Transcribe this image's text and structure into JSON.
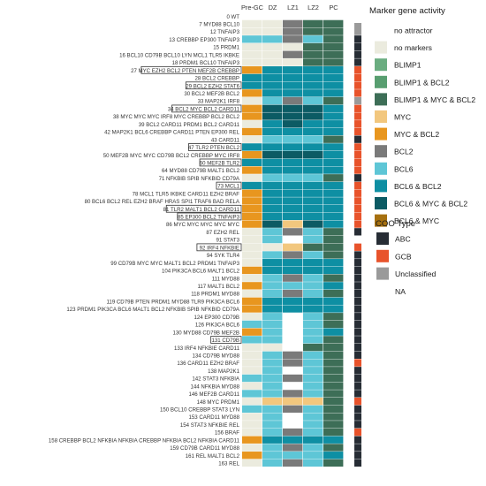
{
  "chart_data": {
    "type": "heatmap",
    "columns": [
      "Pre-GC",
      "DZ",
      "LZ1",
      "LZ2",
      "PC"
    ],
    "rows": [
      {
        "label": "0 WT",
        "cells": [
          0,
          0,
          0,
          0,
          0
        ],
        "coo": 1,
        "boxed": false
      },
      {
        "label": "7 MYD88 BCL10",
        "cells": [
          1,
          1,
          7,
          4,
          4
        ],
        "coo": 2,
        "boxed": false
      },
      {
        "label": "12 TNFAIP3",
        "cells": [
          1,
          1,
          7,
          4,
          4
        ],
        "coo": 2,
        "boxed": false
      },
      {
        "label": "13 CREBBP EP300 TNFAIP3",
        "cells": [
          8,
          8,
          7,
          8,
          4
        ],
        "coo": 0,
        "boxed": false
      },
      {
        "label": "15 PRDM1",
        "cells": [
          1,
          1,
          1,
          4,
          4
        ],
        "coo": 0,
        "boxed": false
      },
      {
        "label": "16 BCL10 CD79B BCL10 LYN MCL1 TLR5 IKBKE",
        "cells": [
          1,
          1,
          7,
          4,
          4
        ],
        "coo": 0,
        "boxed": false
      },
      {
        "label": "18 PRDM1 BCL10 TNFAIP3",
        "cells": [
          1,
          1,
          1,
          4,
          4
        ],
        "coo": 0,
        "boxed": false
      },
      {
        "label": "27 MYC EZH2 BCL2 PTEN MEF2B CREBBP",
        "cells": [
          6,
          9,
          9,
          9,
          9
        ],
        "coo": 1,
        "boxed": true
      },
      {
        "label": "28 BCL2 CREBBP",
        "cells": [
          9,
          9,
          9,
          9,
          9
        ],
        "coo": 1,
        "boxed": false
      },
      {
        "label": "29 BCL2 EZH2 STAT6",
        "cells": [
          9,
          9,
          9,
          9,
          9
        ],
        "coo": 1,
        "boxed": true
      },
      {
        "label": "30 BCL2 MEF2B BCL2",
        "cells": [
          6,
          9,
          9,
          9,
          9
        ],
        "coo": 1,
        "boxed": false
      },
      {
        "label": "33 MAP2K1 IRF8",
        "cells": [
          1,
          8,
          7,
          8,
          4
        ],
        "coo": 2,
        "boxed": false
      },
      {
        "label": "34 BCL2 MYC BCL2 CARD11",
        "cells": [
          6,
          10,
          10,
          10,
          9
        ],
        "coo": 1,
        "boxed": true
      },
      {
        "label": "38 MYC MYC MYC IRF8 MYC CREBBP BCL2 BCL2",
        "cells": [
          6,
          10,
          10,
          10,
          9
        ],
        "coo": 1,
        "boxed": false
      },
      {
        "label": "39 BCL2 CARD11 PRDM1 BCL2 CARD11",
        "cells": [
          1,
          9,
          10,
          9,
          9
        ],
        "coo": 1,
        "boxed": false
      },
      {
        "label": "42 MAP2K1 BCL6 CREBBP CARD11 PTEN EP300 REL",
        "cells": [
          6,
          9,
          9,
          9,
          9
        ],
        "coo": 1,
        "boxed": false
      },
      {
        "label": "43 CARD11",
        "cells": [
          1,
          8,
          8,
          8,
          4
        ],
        "coo": 0,
        "boxed": false
      },
      {
        "label": "47 TLR2 PTEN BCL2",
        "cells": [
          9,
          9,
          9,
          9,
          9
        ],
        "coo": 1,
        "boxed": true
      },
      {
        "label": "50 MEF2B MYC MYC CD79B BCL2 CREBBP MYC IRF8",
        "cells": [
          6,
          10,
          10,
          10,
          9
        ],
        "coo": 1,
        "boxed": false
      },
      {
        "label": "60 MEF2B TLR2",
        "cells": [
          9,
          9,
          9,
          9,
          9
        ],
        "coo": 1,
        "boxed": true
      },
      {
        "label": "64 MYD88 CD79B MALT1 BCL2",
        "cells": [
          6,
          9,
          9,
          9,
          9
        ],
        "coo": 1,
        "boxed": false
      },
      {
        "label": "71 NFKBIB SPIB NFKBID CD79A",
        "cells": [
          1,
          8,
          8,
          8,
          4
        ],
        "coo": 0,
        "boxed": false
      },
      {
        "label": "73 MCL1",
        "cells": [
          9,
          9,
          9,
          9,
          9
        ],
        "coo": 1,
        "boxed": true
      },
      {
        "label": "78 MCL1 TLR5 IKBKE CARD11 EZH2 BRAF",
        "cells": [
          6,
          9,
          9,
          9,
          9
        ],
        "coo": 1,
        "boxed": false
      },
      {
        "label": "80 BCL6 BCL2 REL EZH2 BRAF HRAS SPI1 TRAF6 BAD RELA",
        "cells": [
          6,
          9,
          9,
          9,
          9
        ],
        "coo": 1,
        "boxed": false
      },
      {
        "label": "81 TLR2 MALT1 BCL2 CARD11",
        "cells": [
          6,
          9,
          9,
          9,
          9
        ],
        "coo": 1,
        "boxed": true
      },
      {
        "label": "85 EP300 BCL2 TNFAIP3",
        "cells": [
          6,
          9,
          9,
          9,
          9
        ],
        "coo": 1,
        "boxed": true
      },
      {
        "label": "86 MYC MYC MYC MYC MYC",
        "cells": [
          6,
          10,
          5,
          10,
          9
        ],
        "coo": 1,
        "boxed": false
      },
      {
        "label": "87 EZH2 REL",
        "cells": [
          1,
          8,
          7,
          8,
          4
        ],
        "coo": 0,
        "boxed": false
      },
      {
        "label": "91 STAT3",
        "cells": [
          1,
          8,
          0,
          8,
          4
        ],
        "coo": 3,
        "boxed": false
      },
      {
        "label": "92 IRF4 NFKBIE",
        "cells": [
          1,
          1,
          5,
          4,
          4
        ],
        "coo": 1,
        "boxed": true
      },
      {
        "label": "94 SYK TLR4",
        "cells": [
          1,
          8,
          7,
          8,
          4
        ],
        "coo": 0,
        "boxed": false
      },
      {
        "label": "99 CD79B MYC MYC MALT1 BCL2 PRDM1 TNFAIP3",
        "cells": [
          1,
          9,
          9,
          9,
          9
        ],
        "coo": 0,
        "boxed": false
      },
      {
        "label": "104 PIK3CA BCL6 MALT1 BCL2",
        "cells": [
          6,
          9,
          9,
          9,
          9
        ],
        "coo": 0,
        "boxed": false
      },
      {
        "label": "111 MYD88",
        "cells": [
          1,
          8,
          7,
          8,
          4
        ],
        "coo": 0,
        "boxed": false
      },
      {
        "label": "117 MALT1 BCL2",
        "cells": [
          6,
          8,
          8,
          8,
          9
        ],
        "coo": 0,
        "boxed": false
      },
      {
        "label": "118 PRDM1 MYD88",
        "cells": [
          1,
          8,
          7,
          8,
          4
        ],
        "coo": 0,
        "boxed": false
      },
      {
        "label": "119 CD79B PTEN PRDM1 MYD88 TLR9 PIK3CA BCL6",
        "cells": [
          6,
          9,
          9,
          9,
          9
        ],
        "coo": 0,
        "boxed": false
      },
      {
        "label": "123 PRDM1 PIK3CA BCL6 MALT1 BCL2 NFKBIB SPIB NFKBID CD79A",
        "cells": [
          6,
          9,
          9,
          9,
          9
        ],
        "coo": 0,
        "boxed": false
      },
      {
        "label": "124 EP300 CD79B",
        "cells": [
          1,
          8,
          0,
          8,
          4
        ],
        "coo": 0,
        "boxed": false
      },
      {
        "label": "126 PIK3CA BCL6",
        "cells": [
          8,
          8,
          0,
          8,
          4
        ],
        "coo": 0,
        "boxed": false
      },
      {
        "label": "130 MYD88 CD79B MEF2B",
        "cells": [
          6,
          8,
          0,
          8,
          9
        ],
        "coo": 0,
        "boxed": false
      },
      {
        "label": "131 CD79B",
        "cells": [
          8,
          8,
          0,
          8,
          4
        ],
        "coo": 0,
        "boxed": true
      },
      {
        "label": "133 IRF4 NFKBIE CARD11",
        "cells": [
          1,
          1,
          0,
          4,
          4
        ],
        "coo": 0,
        "boxed": false
      },
      {
        "label": "134 CD79B MYD88",
        "cells": [
          1,
          8,
          7,
          8,
          4
        ],
        "coo": 0,
        "boxed": false
      },
      {
        "label": "136 CARD11 EZH2 BRAF",
        "cells": [
          1,
          8,
          7,
          8,
          4
        ],
        "coo": 1,
        "boxed": false
      },
      {
        "label": "138 MAP2K1",
        "cells": [
          1,
          8,
          0,
          8,
          4
        ],
        "coo": 0,
        "boxed": false
      },
      {
        "label": "142 STAT3 NFKBIA",
        "cells": [
          8,
          8,
          7,
          8,
          4
        ],
        "coo": 0,
        "boxed": false
      },
      {
        "label": "144 NFKBIA MYD88",
        "cells": [
          1,
          8,
          0,
          8,
          4
        ],
        "coo": 0,
        "boxed": false
      },
      {
        "label": "146 MEF2B CARD11",
        "cells": [
          8,
          8,
          7,
          8,
          4
        ],
        "coo": 0,
        "boxed": false
      },
      {
        "label": "148 MYC PRDM1",
        "cells": [
          1,
          5,
          5,
          5,
          4
        ],
        "coo": 1,
        "boxed": false
      },
      {
        "label": "150 BCL10 CREBBP STAT3 LYN",
        "cells": [
          8,
          8,
          7,
          8,
          4
        ],
        "coo": 0,
        "boxed": false
      },
      {
        "label": "153 CARD11 MYD88",
        "cells": [
          1,
          8,
          0,
          8,
          4
        ],
        "coo": 0,
        "boxed": false
      },
      {
        "label": "154 STAT3 NFKBIE REL",
        "cells": [
          1,
          8,
          0,
          8,
          4
        ],
        "coo": 0,
        "boxed": false
      },
      {
        "label": "156 BRAF",
        "cells": [
          1,
          8,
          7,
          8,
          4
        ],
        "coo": 1,
        "boxed": false
      },
      {
        "label": "158 CREBBP BCL2 NFKBIA NFKBIA CREBBP NFKBIA BCL2 NFKBIA CARD11",
        "cells": [
          6,
          9,
          9,
          9,
          9
        ],
        "coo": 0,
        "boxed": false
      },
      {
        "label": "159 CD79B CARD11 MYD88",
        "cells": [
          1,
          8,
          7,
          8,
          4
        ],
        "coo": 0,
        "boxed": false
      },
      {
        "label": "161 REL MALT1 BCL2",
        "cells": [
          6,
          8,
          8,
          8,
          9
        ],
        "coo": 0,
        "boxed": false
      },
      {
        "label": "163 REL",
        "cells": [
          1,
          8,
          7,
          8,
          4
        ],
        "coo": 0,
        "boxed": false
      }
    ],
    "legend_activity": {
      "title": "Marker gene activity",
      "entries": [
        {
          "label": "no attractor",
          "color": "#ffffff"
        },
        {
          "label": "no markers",
          "color": "#ebebde"
        },
        {
          "label": "BLIMP1",
          "color": "#6aad80"
        },
        {
          "label": "BLIMP1 & BCL2",
          "color": "#589e70"
        },
        {
          "label": "BLIMP1 & MYC & BCL2",
          "color": "#3d6e57"
        },
        {
          "label": "MYC",
          "color": "#f2c77e"
        },
        {
          "label": "MYC & BCL2",
          "color": "#e8961f"
        },
        {
          "label": "BCL2",
          "color": "#7a7a7a"
        },
        {
          "label": "BCL6",
          "color": "#5ec6d6"
        },
        {
          "label": "BCL6 & BCL2",
          "color": "#0e8fa3"
        },
        {
          "label": "BCL6 & MYC & BCL2",
          "color": "#0c5b64"
        },
        {
          "label": "BCL6 & MYC",
          "color": "#a6700f"
        }
      ]
    },
    "legend_coo": {
      "title": "COO Type",
      "entries": [
        {
          "label": "ABC",
          "color": "#272d35"
        },
        {
          "label": "GCB",
          "color": "#e8532b"
        },
        {
          "label": "Unclassified",
          "color": "#9a9a9a"
        },
        {
          "label": "NA",
          "color": "#ffffff"
        }
      ]
    },
    "side_panel_header_color": "#9a9a9a"
  }
}
